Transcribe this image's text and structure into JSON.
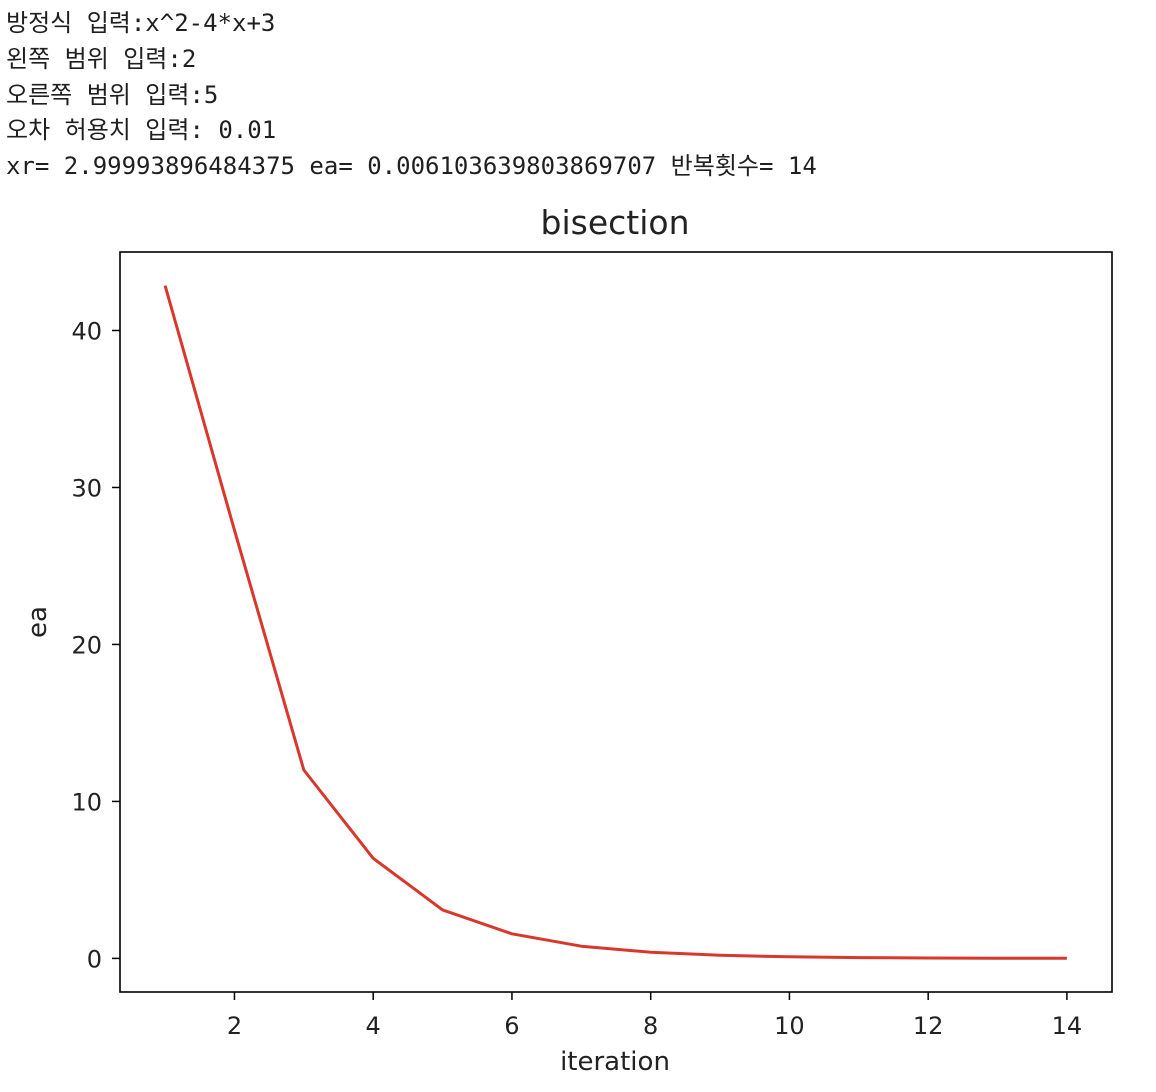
{
  "console": {
    "lines": [
      "방정식 입력:x^2-4*x+3",
      "왼쪽 범위 입력:2",
      "오른쪽 범위 입력:5",
      "오차 허용치 입력: 0.01",
      "xr= 2.99993896484375 ea= 0.006103639803869707 반복횟수= 14"
    ]
  },
  "chart_data": {
    "type": "line",
    "title": "bisection",
    "xlabel": "iteration",
    "ylabel": "ea",
    "x": [
      1,
      2,
      3,
      4,
      5,
      6,
      7,
      8,
      9,
      10,
      11,
      12,
      13,
      14
    ],
    "series": [
      {
        "color": "#d9372b",
        "values": [
          42.86,
          27.27,
          12.0,
          6.38,
          3.09,
          1.57,
          0.78,
          0.39,
          0.2,
          0.1,
          0.05,
          0.024,
          0.012,
          0.0061
        ]
      }
    ],
    "xticks": [
      2,
      4,
      6,
      8,
      10,
      12,
      14
    ],
    "yticks": [
      0,
      10,
      20,
      30,
      40
    ],
    "xlim": [
      0.35,
      14.65
    ],
    "ylim": [
      -2.14,
      45.0
    ],
    "grid": false,
    "legend": "none"
  }
}
